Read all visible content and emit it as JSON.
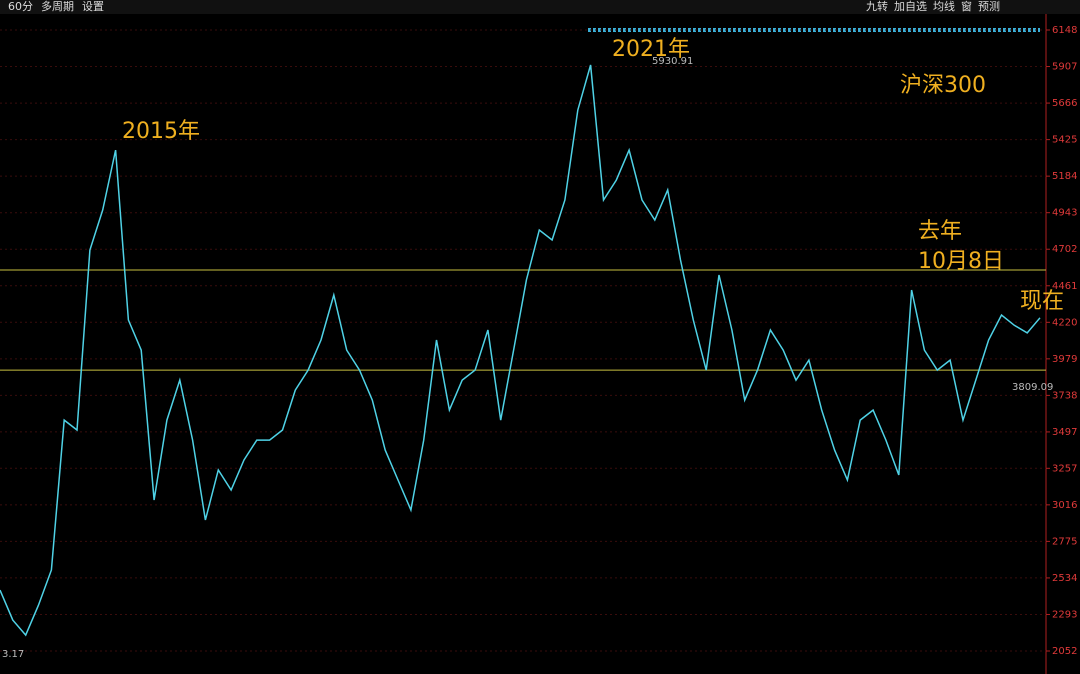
{
  "toolbar": {
    "left": [
      "60分",
      "多周期",
      "设置"
    ],
    "right": [
      "九转",
      "加自选",
      "均线",
      "窗",
      "预测"
    ]
  },
  "chart_data": {
    "type": "line",
    "title": "沪深300",
    "annotations": [
      "2015年",
      "2021年",
      "去年",
      "10月8日",
      "现在"
    ],
    "price_labels": [
      "5930.91",
      "3809.09",
      "3.17"
    ],
    "categories": [
      null,
      null,
      null,
      null,
      null,
      null,
      null,
      null,
      null,
      null,
      null,
      null,
      null,
      null,
      null,
      null,
      null,
      null,
      null,
      null,
      null,
      null,
      null,
      null,
      null,
      null,
      null,
      null,
      null,
      null,
      null,
      null,
      null,
      null,
      null,
      null,
      null,
      null,
      null,
      null,
      null,
      null,
      null,
      null,
      null,
      null,
      null,
      null,
      null,
      null,
      null,
      null,
      null,
      null,
      null,
      null,
      null,
      null,
      null,
      null,
      null,
      null,
      null,
      null,
      null,
      null,
      null,
      null,
      null,
      null,
      null,
      null,
      null,
      null,
      null,
      null,
      null,
      null,
      null,
      null,
      null,
      null
    ],
    "values": [
      2454,
      2256,
      2157,
      2355,
      2586,
      3575,
      3510,
      4697,
      4961,
      5356,
      4235,
      4037,
      3048,
      3575,
      3839,
      3443,
      2916,
      3246,
      3114,
      3312,
      3443,
      3443,
      3510,
      3773,
      3905,
      4103,
      4400,
      4037,
      3905,
      3707,
      3377,
      3180,
      2982,
      3443,
      4103,
      3641,
      3839,
      3905,
      4169,
      3575,
      4037,
      4499,
      4829,
      4763,
      5027,
      5620,
      5917,
      5027,
      5158,
      5356,
      5027,
      4895,
      5093,
      4631,
      4235,
      3905,
      4532,
      4169,
      3707,
      3905,
      4169,
      4037,
      3839,
      3971,
      3641,
      3377,
      3180,
      3575,
      3641,
      3443,
      3213,
      4433,
      4037,
      3905,
      3971,
      3575,
      3839,
      4103,
      4268,
      4200,
      4150,
      4250
    ],
    "color": "#4fd2e6",
    "hlines": [
      4565,
      3905
    ],
    "hline_color": "#c8c040",
    "ylim": [
      2052,
      6148
    ],
    "yticks": [
      2052,
      2293,
      2534,
      2775,
      3016,
      3257,
      3497,
      3738,
      3979,
      4220,
      4461,
      4702,
      4943,
      5184,
      5425,
      5666,
      5907,
      6148
    ],
    "grid": true
  }
}
